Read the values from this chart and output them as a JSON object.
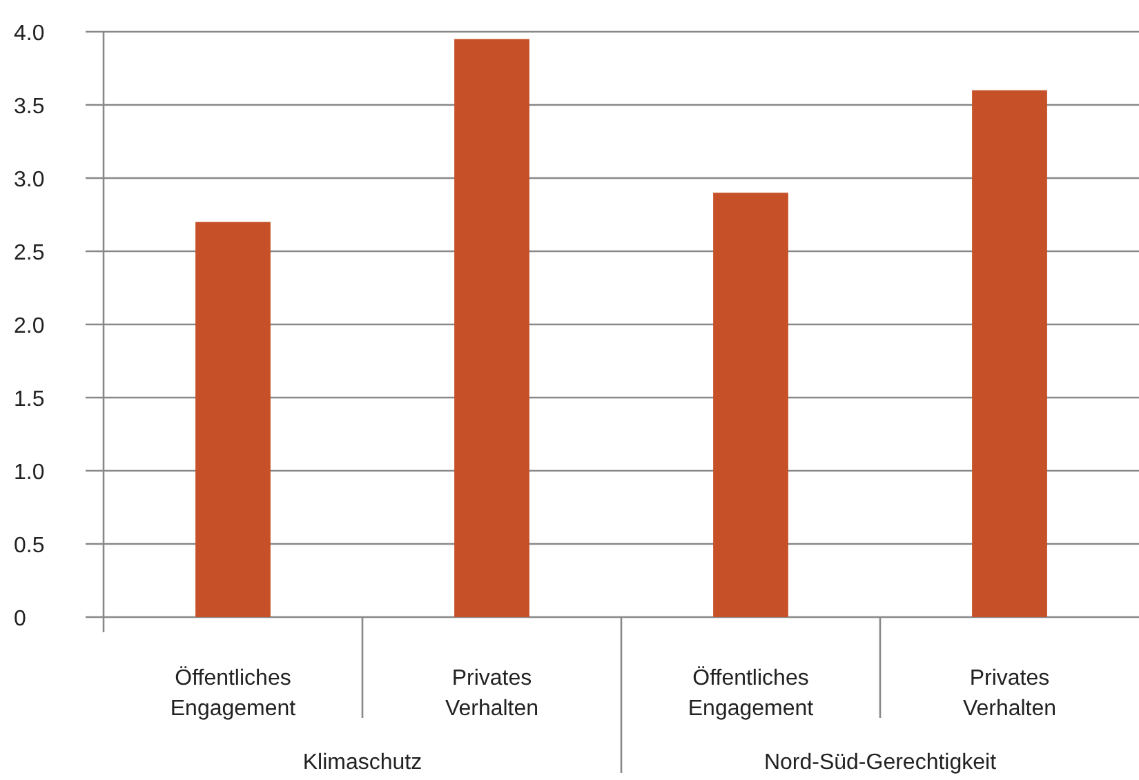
{
  "chart_data": {
    "type": "bar",
    "categories": [
      "Öffentliches Engagement",
      "Privates Verhalten",
      "Öffentliches Engagement",
      "Privates Verhalten"
    ],
    "values": [
      2.7,
      3.95,
      2.9,
      3.6
    ],
    "color": "#c65027",
    "ylim": [
      0,
      4
    ],
    "yticks": [
      {
        "value": 0,
        "label": "0"
      },
      {
        "value": 0.5,
        "label": "0.5"
      },
      {
        "value": 1,
        "label": "1.0"
      },
      {
        "value": 1.5,
        "label": "1.5"
      },
      {
        "value": 2,
        "label": "2.0"
      },
      {
        "value": 2.5,
        "label": "2.5"
      },
      {
        "value": 3,
        "label": "3.0"
      },
      {
        "value": 3.5,
        "label": "3.5"
      },
      {
        "value": 4,
        "label": "4.0"
      }
    ],
    "grid": "y",
    "annotations": [
      "Klimaschutz",
      "Nord-Süd-Gerechtigkeit"
    ]
  }
}
